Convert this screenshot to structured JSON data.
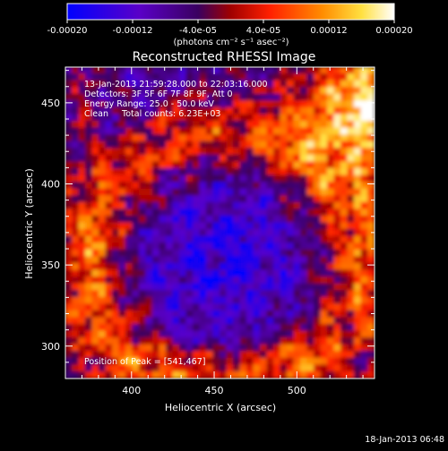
{
  "colorbar": {
    "tick_labels": [
      "-0.00020",
      "-0.00012",
      "-4.0e-05",
      "4.0e-05",
      "0.00012",
      "0.00020"
    ],
    "tick_values": [
      -0.0002,
      -0.00012,
      -4e-05,
      4e-05,
      0.00012,
      0.0002
    ],
    "range": [
      -0.0002,
      0.0002
    ],
    "units_label": "(photons cm⁻² s⁻¹ asec⁻²)",
    "colors": [
      "#0000ff",
      "#5a00c8",
      "#a00000",
      "#ff2000",
      "#ff8c00",
      "#ffe040",
      "#ffffff"
    ]
  },
  "chart_data": {
    "type": "heatmap",
    "title": "Reconstructed RHESSI Image",
    "xlabel": "Heliocentric X (arcsec)",
    "ylabel": "Heliocentric Y (arcsec)",
    "xlim": [
      360,
      547
    ],
    "ylim": [
      280,
      472
    ],
    "xticks": [
      400,
      450,
      500
    ],
    "yticks": [
      300,
      350,
      400,
      450
    ],
    "annotations": [
      "13-Jan-2013 21:59:28.000 to 22:03:16.000",
      "Detectors: 3F 5F 6F 7F 8F 9F, Att 0",
      "Energy Range: 25.0 - 50.0 keV",
      "Clean     Total counts: 6.23E+03"
    ],
    "peak_label": "Position of Peak = [541,467]",
    "peak_position": [
      541,
      467
    ]
  },
  "footer": {
    "timestamp": "18-Jan-2013 06:48"
  }
}
